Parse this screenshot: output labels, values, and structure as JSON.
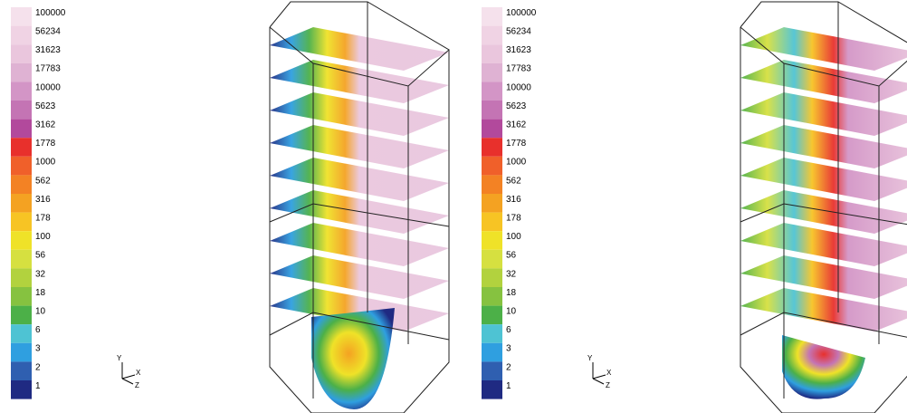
{
  "panels": [
    {
      "legend": {
        "labels": [
          "100000",
          "56234",
          "31623",
          "17783",
          "10000",
          "5623",
          "3162",
          "1778",
          "1000",
          "562",
          "316",
          "178",
          "100",
          "56",
          "32",
          "18",
          "10",
          "6",
          "3",
          "2",
          "1"
        ],
        "colors": [
          "#f5e1ec",
          "#f0d3e4",
          "#eac6dd",
          "#dfb2d3",
          "#d395c6",
          "#c474b4",
          "#b2499c",
          "#e8302c",
          "#f0602a",
          "#f38224",
          "#f4a222",
          "#f7c424",
          "#efe228",
          "#d6e040",
          "#b2d23e",
          "#86c240",
          "#4cb048",
          "#4ec3d3",
          "#2f9fe0",
          "#2f5fb0",
          "#1f2a82"
        ]
      },
      "triad": {
        "y": "Y",
        "x": "X",
        "z": "Z"
      }
    },
    {
      "legend": {
        "labels": [
          "100000",
          "56234",
          "31623",
          "17783",
          "10000",
          "5623",
          "3162",
          "1778",
          "1000",
          "562",
          "316",
          "178",
          "100",
          "56",
          "32",
          "18",
          "10",
          "6",
          "3",
          "2",
          "1"
        ],
        "colors": [
          "#f5e1ec",
          "#f0d3e4",
          "#eac6dd",
          "#dfb2d3",
          "#d395c6",
          "#c474b4",
          "#b2499c",
          "#e8302c",
          "#f0602a",
          "#f38224",
          "#f4a222",
          "#f7c424",
          "#efe228",
          "#d6e040",
          "#b2d23e",
          "#86c240",
          "#4cb048",
          "#4ec3d3",
          "#2f9fe0",
          "#2f5fb0",
          "#1f2a82"
        ]
      },
      "triad": {
        "y": "Y",
        "x": "X",
        "z": "Z"
      }
    }
  ]
}
